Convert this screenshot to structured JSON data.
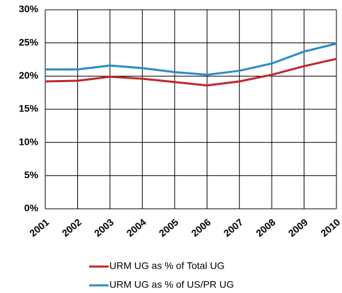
{
  "chart_data": {
    "type": "line",
    "categories": [
      "2001",
      "2002",
      "2003",
      "2004",
      "2005",
      "2006",
      "2007",
      "2008",
      "2009",
      "2010"
    ],
    "series": [
      {
        "name": "URM UG as % of Total UG",
        "color": "#c0282d",
        "values": [
          19.2,
          19.3,
          19.9,
          19.6,
          19.1,
          18.6,
          19.2,
          20.2,
          21.5,
          22.6
        ]
      },
      {
        "name": "URM UG as % of US/PR UG",
        "color": "#2a8cc8",
        "values": [
          21.0,
          21.0,
          21.6,
          21.2,
          20.6,
          20.2,
          20.8,
          21.9,
          23.7,
          24.9
        ]
      }
    ],
    "ylim": [
      0,
      30
    ],
    "yticks": [
      {
        "value": 0,
        "label": "0%"
      },
      {
        "value": 5,
        "label": "5%"
      },
      {
        "value": 10,
        "label": "10%"
      },
      {
        "value": 15,
        "label": "15%"
      },
      {
        "value": 20,
        "label": "20%"
      },
      {
        "value": 25,
        "label": "25%"
      },
      {
        "value": 30,
        "label": "30%"
      }
    ],
    "grid": true,
    "legend": "bottom"
  }
}
